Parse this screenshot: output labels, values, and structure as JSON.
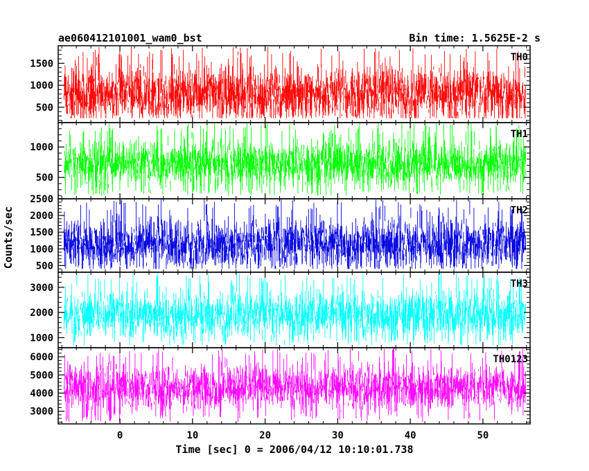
{
  "header": {
    "left": "ae060412101001_wam0_bst",
    "right": "Bin time: 1.5625E-2 s"
  },
  "chart_data": {
    "type": "line",
    "title": "ae060412101001_wam0_bst",
    "subtitle": "Bin time: 1.5625E-2 s",
    "xlabel": "Time [sec] 0 = 2006/04/12 10:10:01.738",
    "ylabel": "Counts/sec",
    "xlim": [
      -8.5,
      56.5
    ],
    "x_ticks": [
      0,
      10,
      20,
      30,
      40,
      50
    ],
    "x_range_data": [
      -7.7,
      55.9
    ],
    "bin_time_s": 0.015625,
    "grid": false,
    "panels": [
      {
        "name": "TH0",
        "color": "#ff0000",
        "ylim": [
          150,
          1900
        ],
        "y_ticks": [
          500,
          1000,
          1500
        ],
        "mean": 800,
        "min": 250,
        "max": 1900
      },
      {
        "name": "TH1",
        "color": "#00ff00",
        "ylim": [
          150,
          1400
        ],
        "y_ticks": [
          500,
          1000
        ],
        "mean": 720,
        "min": 200,
        "max": 1400
      },
      {
        "name": "TH2",
        "color": "#0000e0",
        "ylim": [
          300,
          2500
        ],
        "y_ticks": [
          500,
          1000,
          1500,
          2000,
          2500
        ],
        "mean": 1150,
        "min": 400,
        "max": 2500
      },
      {
        "name": "TH3",
        "color": "#00ffff",
        "ylim": [
          600,
          3600
        ],
        "y_ticks": [
          1000,
          2000,
          3000
        ],
        "mean": 1900,
        "min": 700,
        "max": 3600
      },
      {
        "name": "TH0123",
        "color": "#ff00ff",
        "ylim": [
          2300,
          6500
        ],
        "y_ticks": [
          3000,
          4000,
          5000,
          6000
        ],
        "mean": 4300,
        "min": 2400,
        "max": 6500
      }
    ]
  }
}
